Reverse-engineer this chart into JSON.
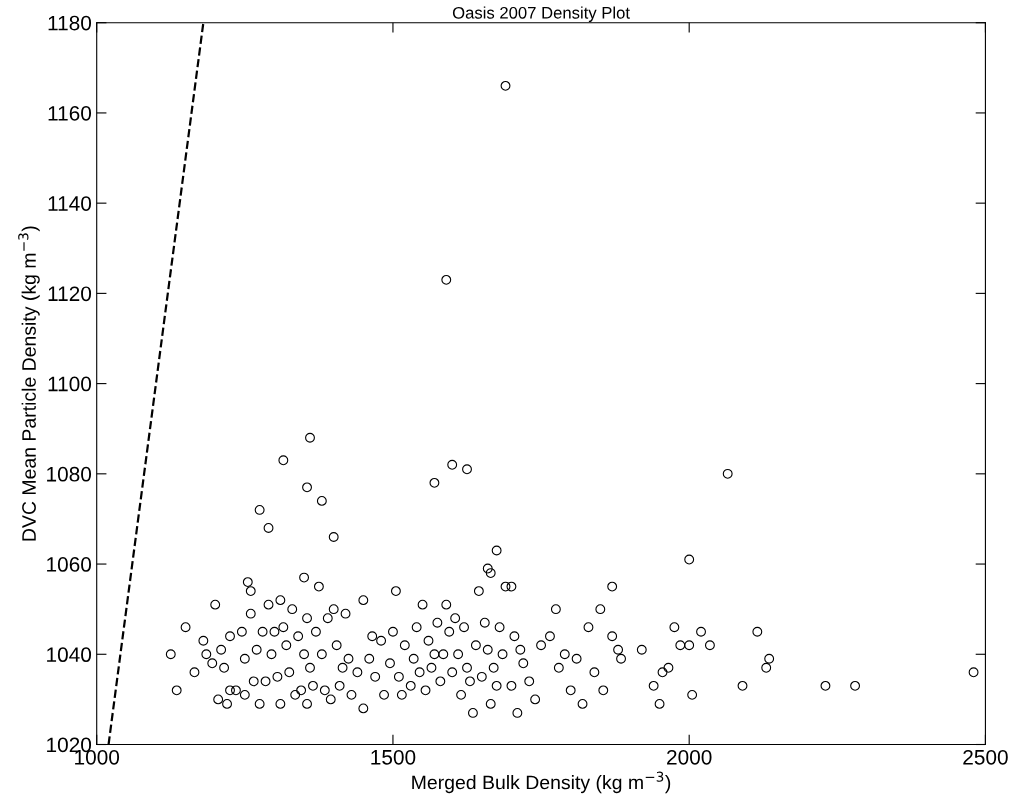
{
  "chart_data": {
    "type": "scatter",
    "title": "Oasis 2007 Density Plot",
    "xlabel": "Merged Bulk Density (kg m$^{−3}$)",
    "ylabel": "DVC Mean Particle Density (kg m$^{−3}$)",
    "xlim": [
      1000,
      2500
    ],
    "xticks": [
      1000,
      1500,
      2000,
      2500
    ],
    "ylim": [
      1020,
      1180
    ],
    "yticks": [
      1020,
      1040,
      1060,
      1080,
      1100,
      1120,
      1140,
      1160,
      1180
    ],
    "grid": false,
    "series": [
      {
        "color": "#000000",
        "marker": "circle",
        "x": [
          1690,
          1590,
          1360,
          1315,
          1600,
          1625,
          1570,
          2065,
          1355,
          1380,
          1275,
          1290,
          1400,
          1675,
          2000,
          1350,
          1255,
          1660,
          1665,
          1700,
          1870,
          1125,
          1135,
          1150,
          1165,
          1180,
          1185,
          1195,
          1200,
          1205,
          1210,
          1215,
          1220,
          1225,
          1225,
          1235,
          1245,
          1250,
          1250,
          1260,
          1260,
          1265,
          1270,
          1275,
          1280,
          1285,
          1290,
          1295,
          1300,
          1305,
          1310,
          1310,
          1315,
          1320,
          1325,
          1330,
          1335,
          1340,
          1345,
          1350,
          1355,
          1355,
          1360,
          1365,
          1370,
          1375,
          1380,
          1385,
          1390,
          1395,
          1400,
          1405,
          1410,
          1415,
          1420,
          1425,
          1430,
          1440,
          1450,
          1450,
          1460,
          1465,
          1470,
          1480,
          1485,
          1495,
          1500,
          1505,
          1510,
          1515,
          1520,
          1530,
          1535,
          1540,
          1545,
          1550,
          1555,
          1560,
          1565,
          1570,
          1575,
          1580,
          1585,
          1590,
          1595,
          1600,
          1605,
          1610,
          1615,
          1620,
          1625,
          1630,
          1635,
          1640,
          1645,
          1650,
          1655,
          1660,
          1665,
          1670,
          1675,
          1680,
          1685,
          1690,
          1700,
          1705,
          1710,
          1715,
          1720,
          1730,
          1740,
          1750,
          1765,
          1775,
          1780,
          1790,
          1800,
          1810,
          1820,
          1830,
          1840,
          1850,
          1855,
          1870,
          1880,
          1885,
          1920,
          1940,
          1950,
          1955,
          1965,
          1975,
          1985,
          2000,
          2005,
          2020,
          2035,
          2090,
          2115,
          2135,
          2130,
          2230,
          2280,
          2480
        ],
        "values": [
          1166,
          1123,
          1088,
          1083,
          1082,
          1081,
          1078,
          1080,
          1077,
          1074,
          1072,
          1068,
          1066,
          1063,
          1061,
          1057,
          1056,
          1059,
          1058,
          1055,
          1055,
          1040,
          1032,
          1046,
          1036,
          1043,
          1040,
          1038,
          1051,
          1030,
          1041,
          1037,
          1029,
          1044,
          1032,
          1032,
          1045,
          1039,
          1031,
          1054,
          1049,
          1034,
          1041,
          1029,
          1045,
          1034,
          1051,
          1040,
          1045,
          1035,
          1052,
          1029,
          1046,
          1042,
          1036,
          1050,
          1031,
          1044,
          1032,
          1040,
          1048,
          1029,
          1037,
          1033,
          1045,
          1055,
          1040,
          1032,
          1048,
          1030,
          1050,
          1042,
          1033,
          1037,
          1049,
          1039,
          1031,
          1036,
          1028,
          1052,
          1039,
          1044,
          1035,
          1043,
          1031,
          1038,
          1045,
          1054,
          1035,
          1031,
          1042,
          1033,
          1039,
          1046,
          1036,
          1051,
          1032,
          1043,
          1037,
          1040,
          1047,
          1034,
          1040,
          1051,
          1045,
          1036,
          1048,
          1040,
          1031,
          1046,
          1037,
          1034,
          1027,
          1042,
          1054,
          1035,
          1047,
          1041,
          1029,
          1037,
          1033,
          1046,
          1040,
          1055,
          1033,
          1044,
          1027,
          1041,
          1038,
          1034,
          1030,
          1042,
          1044,
          1050,
          1037,
          1040,
          1032,
          1039,
          1029,
          1046,
          1036,
          1050,
          1032,
          1044,
          1041,
          1039,
          1041,
          1033,
          1029,
          1036,
          1037,
          1046,
          1042,
          1042,
          1031,
          1045,
          1042,
          1033,
          1045,
          1039,
          1037,
          1033,
          1033,
          1036
        ]
      },
      {
        "type": "line",
        "color": "#000000",
        "line_style": "dashed",
        "marker": "none",
        "x": [
          1020,
          1180
        ],
        "values": [
          1020,
          1180
        ]
      }
    ]
  }
}
